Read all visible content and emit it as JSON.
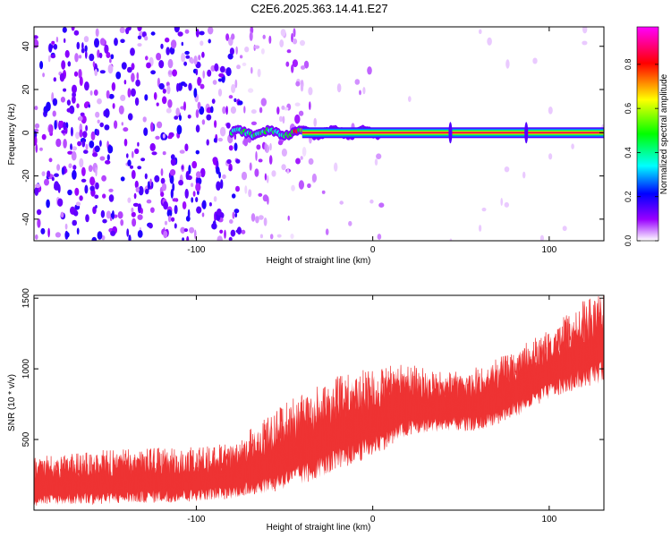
{
  "title": "C2E6.2025.363.14.41.E27",
  "chart_data": [
    {
      "type": "heatmap",
      "name": "spectrogram",
      "xlabel": "Height of straight line (km)",
      "ylabel": "Frequency (Hz)",
      "xlim": [
        -192,
        131
      ],
      "ylim": [
        -50,
        49
      ],
      "xticks": [
        -100,
        0,
        100
      ],
      "xtick_labels": [
        "-100",
        "0",
        "100"
      ],
      "yticks": [
        -40,
        -20,
        0,
        20,
        40
      ],
      "ytick_labels": [
        "-40",
        "-20",
        "0",
        "20",
        "40"
      ],
      "colorbar": {
        "label": "Normalized spectral amplitude",
        "range": [
          0,
          0.97
        ],
        "ticks": [
          0.0,
          0.2,
          0.4,
          0.6,
          0.8
        ],
        "tick_labels": [
          "0.0",
          "0.2",
          "0.4",
          "0.6",
          "0.8"
        ],
        "stops": [
          "#ffffff",
          "#9900ff",
          "#0000ff",
          "#00ffff",
          "#00ff00",
          "#ffff00",
          "#ff0000",
          "#ff00ff"
        ]
      },
      "features": {
        "noise_region_km": [
          -192,
          -75
        ],
        "transition_region_km": [
          -75,
          -35
        ],
        "signal_start_km": -80,
        "signal_frequency_hz": 0,
        "signal_peak_amplitude": 0.9,
        "spikes_km": [
          44,
          87
        ]
      }
    },
    {
      "type": "line",
      "name": "snr",
      "xlabel": "Height of straight line (km)",
      "ylabel": "SNR (10 * v/v)",
      "xlim": [
        -192,
        131
      ],
      "ylim": [
        0,
        1520
      ],
      "xticks": [
        -100,
        0,
        100
      ],
      "xtick_labels": [
        "-100",
        "0",
        "100"
      ],
      "yticks": [
        500,
        1000,
        1500
      ],
      "ytick_labels": [
        "500",
        "1000",
        "1500"
      ],
      "color": "#ee3333",
      "trend": {
        "x": [
          -192,
          -150,
          -100,
          -80,
          -60,
          -40,
          -20,
          0,
          20,
          40,
          60,
          80,
          100,
          120,
          131
        ],
        "lower": [
          30,
          40,
          60,
          80,
          120,
          170,
          280,
          380,
          520,
          560,
          560,
          650,
          780,
          870,
          900
        ],
        "upper": [
          350,
          400,
          420,
          450,
          620,
          800,
          900,
          960,
          1000,
          950,
          980,
          1100,
          1250,
          1450,
          1520
        ]
      }
    }
  ]
}
